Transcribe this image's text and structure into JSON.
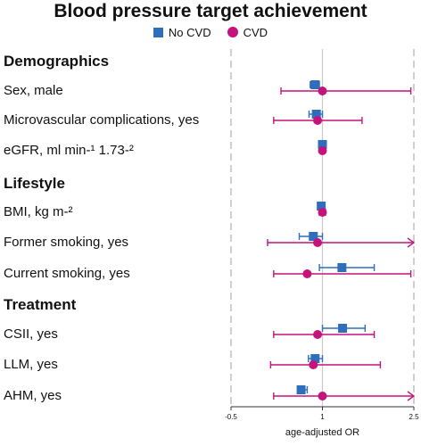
{
  "chart_data": {
    "type": "forest",
    "title": "Blood pressure target achievement",
    "xlabel": "age-adjusted OR",
    "xlim": [
      -0.5,
      2.5
    ],
    "ticks": [
      {
        "value": -0.5,
        "label": "-0.5"
      },
      {
        "value": 1,
        "label": "1"
      },
      {
        "value": 2.5,
        "label": "2.5"
      }
    ],
    "reference_line": 1,
    "series": [
      {
        "name": "No CVD",
        "color": "#2f6ebd",
        "marker": "square"
      },
      {
        "name": "CVD",
        "color": "#c4137c",
        "marker": "circle"
      }
    ],
    "sections": [
      {
        "name": "Demographics",
        "rows": [
          {
            "label": "Sex, male",
            "estimates": [
              {
                "est": 0.88,
                "lo": 0.8,
                "hi": 0.95
              },
              {
                "est": 1.0,
                "lo": 0.32,
                "hi": 2.45
              }
            ]
          },
          {
            "label": "Microvascular complications, yes",
            "estimates": [
              {
                "est": 0.9,
                "lo": 0.78,
                "hi": 1.0
              },
              {
                "est": 0.92,
                "lo": 0.2,
                "hi": 1.65
              }
            ]
          },
          {
            "label": "eGFR, ml min-¹ 1.73-²",
            "estimates": [
              {
                "est": 1.0,
                "lo": 1.0,
                "hi": 1.0
              },
              {
                "est": 1.0,
                "lo": 1.0,
                "hi": 1.0
              }
            ]
          }
        ]
      },
      {
        "name": "Lifestyle",
        "rows": [
          {
            "label": "BMI, kg m-²",
            "estimates": [
              {
                "est": 0.98,
                "lo": 0.98,
                "hi": 0.98
              },
              {
                "est": 1.0,
                "lo": 0.95,
                "hi": 1.05
              }
            ]
          },
          {
            "label": "Former smoking, yes",
            "estimates": [
              {
                "est": 0.85,
                "lo": 0.62,
                "hi": 1.0
              },
              {
                "est": 0.92,
                "lo": 0.1,
                "hi": 2.5,
                "arrow": true
              }
            ]
          },
          {
            "label": "Current smoking, yes",
            "estimates": [
              {
                "est": 1.32,
                "lo": 0.95,
                "hi": 1.85
              },
              {
                "est": 0.75,
                "lo": 0.2,
                "hi": 2.45
              }
            ]
          }
        ]
      },
      {
        "name": "Treatment",
        "rows": [
          {
            "label": "CSII, yes",
            "estimates": [
              {
                "est": 1.33,
                "lo": 1.0,
                "hi": 1.7
              },
              {
                "est": 0.92,
                "lo": 0.2,
                "hi": 1.85
              }
            ]
          },
          {
            "label": "LLM, yes",
            "estimates": [
              {
                "est": 0.88,
                "lo": 0.77,
                "hi": 1.0
              },
              {
                "est": 0.85,
                "lo": 0.15,
                "hi": 1.95
              }
            ]
          },
          {
            "label": "AHM, yes",
            "estimates": [
              {
                "est": 0.65,
                "lo": 0.6,
                "hi": 0.75
              },
              {
                "est": 1.0,
                "lo": 0.2,
                "hi": 2.5,
                "arrow": true
              }
            ]
          }
        ]
      }
    ]
  }
}
